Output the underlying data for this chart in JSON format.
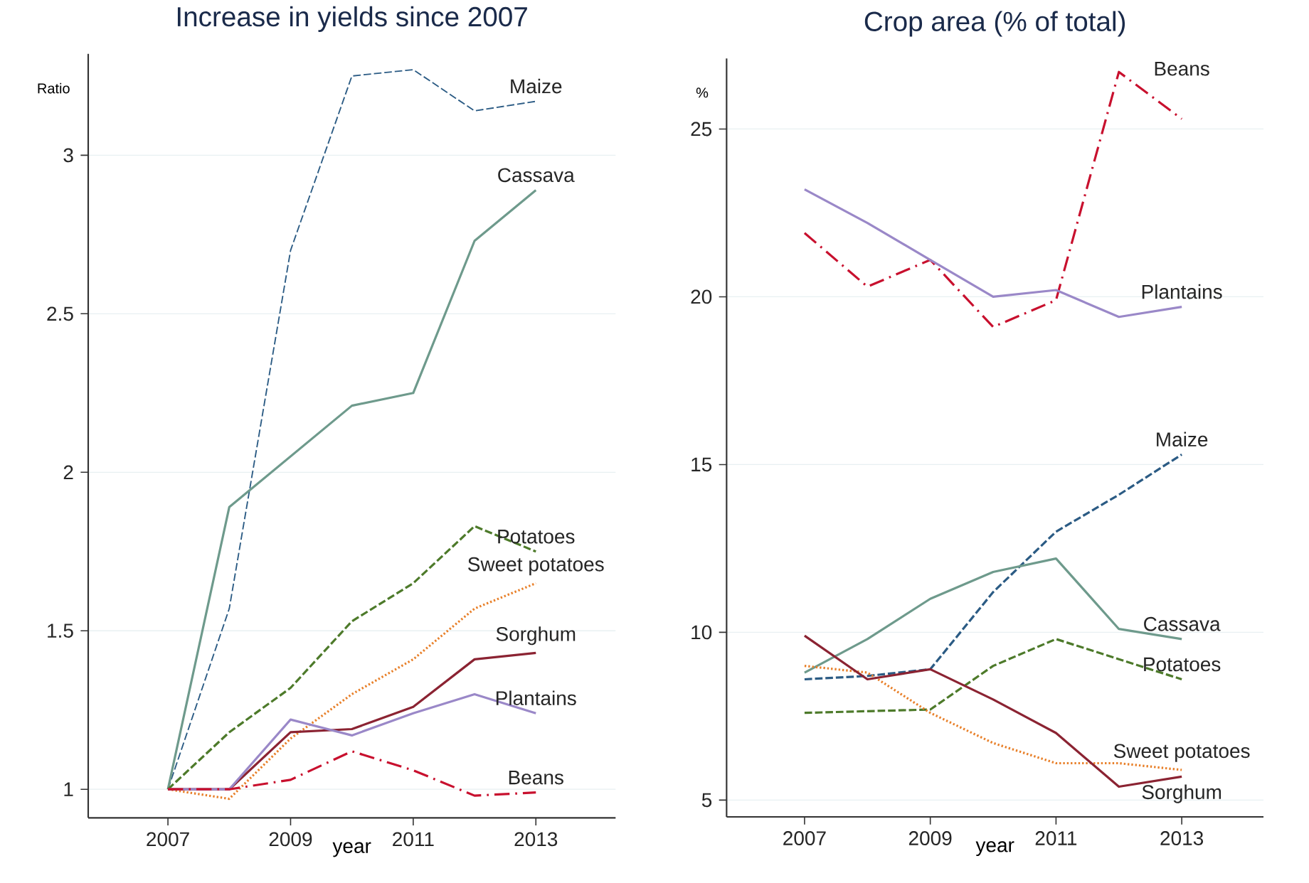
{
  "chart_data": [
    {
      "type": "line",
      "title": "Increase in yields since 2007",
      "xlabel": "year",
      "ylabel": "Ratio",
      "x": [
        2007,
        2008,
        2009,
        2010,
        2011,
        2012,
        2013
      ],
      "xlim": [
        2005.7,
        2014.3
      ],
      "xticks": [
        2007,
        2009,
        2011,
        2013
      ],
      "ylim": [
        0.91,
        3.32
      ],
      "yticks": [
        1,
        1.5,
        2,
        2.5,
        3
      ],
      "grid": "y",
      "legend": false,
      "marker": "none",
      "series": [
        {
          "name": "Maize",
          "color": "#2b5b84",
          "line_style": "dashed",
          "values": [
            1,
            1.57,
            2.7,
            3.25,
            3.27,
            3.14,
            3.17
          ]
        },
        {
          "name": "Cassava",
          "color": "#6e9a8c",
          "line_style": "solid",
          "values": [
            1,
            1.89,
            2.05,
            2.21,
            2.25,
            2.73,
            2.89
          ]
        },
        {
          "name": "Potatoes",
          "color": "#4d7a2a",
          "line_style": "dashed",
          "values": [
            1,
            1.18,
            1.32,
            1.53,
            1.65,
            1.83,
            1.75
          ]
        },
        {
          "name": "Sweet potatoes",
          "color": "#e8802a",
          "line_style": "dotted",
          "values": [
            1,
            0.97,
            1.16,
            1.3,
            1.41,
            1.57,
            1.65
          ]
        },
        {
          "name": "Sorghum",
          "color": "#8b2332",
          "line_style": "solid",
          "values": [
            1,
            1,
            1.18,
            1.19,
            1.26,
            1.41,
            1.43
          ]
        },
        {
          "name": "Plantains",
          "color": "#9a88c8",
          "line_style": "solid",
          "values": [
            1,
            1,
            1.22,
            1.17,
            1.24,
            1.3,
            1.24
          ]
        },
        {
          "name": "Beans",
          "color": "#c8102e",
          "line_style": "dashdot",
          "values": [
            1,
            1,
            1.03,
            1.12,
            1.06,
            0.98,
            0.99
          ]
        }
      ]
    },
    {
      "type": "line",
      "title": "Crop area (% of total)",
      "xlabel": "year",
      "ylabel": "%",
      "x": [
        2007,
        2008,
        2009,
        2010,
        2011,
        2012,
        2013
      ],
      "xlim": [
        2005.76,
        2014.3
      ],
      "xticks": [
        2007,
        2009,
        2011,
        2013
      ],
      "ylim": [
        4.5,
        27.1
      ],
      "yticks": [
        5,
        10,
        15,
        20,
        25
      ],
      "grid": "y",
      "legend": false,
      "marker": "none",
      "series": [
        {
          "name": "Beans",
          "color": "#c8102e",
          "line_style": "dashdot",
          "values": [
            21.9,
            20.3,
            21.1,
            19.1,
            19.9,
            26.7,
            25.3
          ]
        },
        {
          "name": "Plantains",
          "color": "#9a88c8",
          "line_style": "solid",
          "values": [
            23.2,
            22.2,
            21.1,
            20.0,
            20.2,
            19.4,
            19.7
          ]
        },
        {
          "name": "Maize",
          "color": "#2b5b84",
          "line_style": "dashed",
          "values": [
            8.6,
            8.7,
            8.9,
            11.2,
            13.0,
            14.1,
            15.3
          ]
        },
        {
          "name": "Cassava",
          "color": "#6e9a8c",
          "line_style": "solid",
          "values": [
            8.8,
            9.8,
            11.0,
            11.8,
            12.2,
            10.1,
            9.8
          ]
        },
        {
          "name": "Potatoes",
          "color": "#4d7a2a",
          "line_style": "dashed",
          "values": [
            7.6,
            7.65,
            7.7,
            9.0,
            9.8,
            9.2,
            8.6
          ]
        },
        {
          "name": "Sweet potatoes",
          "color": "#e8802a",
          "line_style": "dotted",
          "values": [
            9.0,
            8.8,
            7.6,
            6.7,
            6.1,
            6.1,
            5.9
          ]
        },
        {
          "name": "Sorghum",
          "color": "#8b2332",
          "line_style": "solid",
          "values": [
            9.9,
            8.6,
            8.9,
            8.0,
            7.0,
            5.4,
            5.7
          ]
        }
      ]
    }
  ]
}
